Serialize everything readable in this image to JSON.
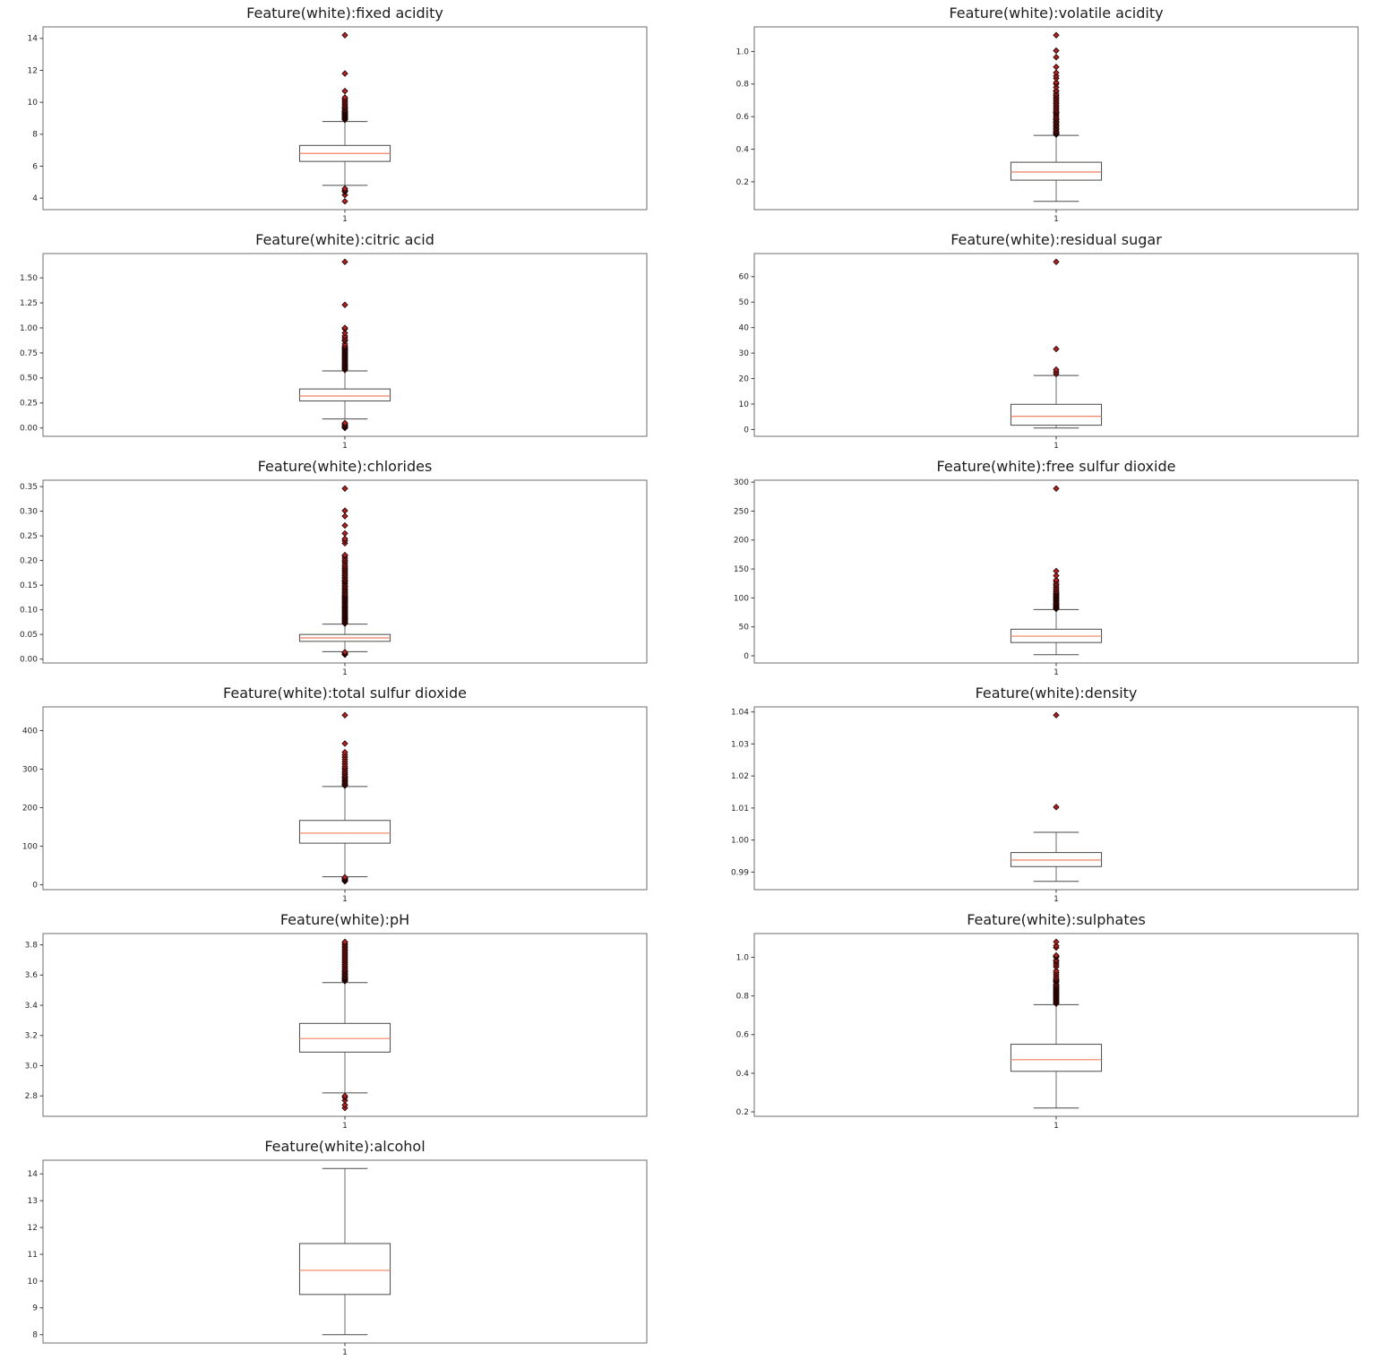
{
  "figure": {
    "background": "#ffffff",
    "layout": "2-column grid of 11 boxplots, last row single plot"
  },
  "style": {
    "frame_color": "#6e6e6e",
    "tick_color": "#3c3c3c",
    "tick_label_color": "#262626",
    "box_color": "#4a4a4a",
    "cap_color": "#4a4a4a",
    "whisker_color": "#6e6e6e",
    "median_color": "#f08262",
    "flier_fill": "#b22222",
    "flier_edge": "#1a0000",
    "title_color": "#1c1c1c"
  },
  "chart_data": [
    {
      "type": "boxplot",
      "title": "Feature(white):fixed acidity",
      "xtick_label": "1",
      "ylim": [
        3.28,
        14.72
      ],
      "yticks": [
        4,
        6,
        8,
        10,
        12,
        14
      ],
      "ytick_labels": [
        "4",
        "6",
        "8",
        "10",
        "12",
        "14"
      ],
      "stats": {
        "whislo": 4.8,
        "q1": 6.3,
        "med": 6.8,
        "q3": 7.3,
        "whishi": 8.8
      },
      "fliers": [
        3.8,
        4.2,
        4.4,
        4.45,
        4.5,
        4.6,
        8.9,
        8.95,
        9.0,
        9.05,
        9.1,
        9.15,
        9.2,
        9.25,
        9.3,
        9.35,
        9.4,
        9.45,
        9.5,
        9.6,
        9.65,
        9.7,
        9.8,
        9.9,
        10.0,
        10.1,
        10.2,
        10.3,
        10.7,
        11.8,
        14.2
      ]
    },
    {
      "type": "boxplot",
      "title": "Feature(white):volatile acidity",
      "xtick_label": "1",
      "ylim": [
        0.029,
        1.151
      ],
      "yticks": [
        0.2,
        0.4,
        0.6,
        0.8,
        1.0
      ],
      "ytick_labels": [
        "0.2",
        "0.4",
        "0.6",
        "0.8",
        "1.0"
      ],
      "stats": {
        "whislo": 0.08,
        "q1": 0.21,
        "med": 0.26,
        "q3": 0.32,
        "whishi": 0.485
      },
      "fliers": [
        0.49,
        0.495,
        0.5,
        0.505,
        0.51,
        0.52,
        0.525,
        0.53,
        0.54,
        0.545,
        0.55,
        0.56,
        0.565,
        0.57,
        0.58,
        0.585,
        0.59,
        0.6,
        0.61,
        0.62,
        0.625,
        0.63,
        0.64,
        0.65,
        0.66,
        0.67,
        0.68,
        0.69,
        0.7,
        0.71,
        0.72,
        0.73,
        0.74,
        0.755,
        0.76,
        0.78,
        0.8,
        0.81,
        0.835,
        0.85,
        0.87,
        0.905,
        0.965,
        1.005,
        1.1
      ]
    },
    {
      "type": "boxplot",
      "title": "Feature(white):citric acid",
      "xtick_label": "1",
      "ylim": [
        -0.083,
        1.743
      ],
      "yticks": [
        0.0,
        0.25,
        0.5,
        0.75,
        1.0,
        1.25,
        1.5
      ],
      "ytick_labels": [
        "0.00",
        "0.25",
        "0.50",
        "0.75",
        "1.00",
        "1.25",
        "1.50"
      ],
      "stats": {
        "whislo": 0.09,
        "q1": 0.27,
        "med": 0.32,
        "q3": 0.39,
        "whishi": 0.57
      },
      "fliers": [
        0.0,
        0.005,
        0.01,
        0.02,
        0.03,
        0.04,
        0.05,
        0.58,
        0.59,
        0.6,
        0.61,
        0.62,
        0.63,
        0.64,
        0.65,
        0.66,
        0.67,
        0.68,
        0.69,
        0.7,
        0.71,
        0.72,
        0.73,
        0.74,
        0.75,
        0.76,
        0.77,
        0.78,
        0.79,
        0.8,
        0.81,
        0.82,
        0.84,
        0.87,
        0.88,
        0.9,
        0.92,
        0.95,
        0.99,
        1.0,
        1.23,
        1.66
      ]
    },
    {
      "type": "boxplot",
      "title": "Feature(white):residual sugar",
      "xtick_label": "1",
      "ylim": [
        -2.66,
        69.06
      ],
      "yticks": [
        0,
        10,
        20,
        30,
        40,
        50,
        60
      ],
      "ytick_labels": [
        "0",
        "10",
        "20",
        "30",
        "40",
        "50",
        "60"
      ],
      "stats": {
        "whislo": 0.6,
        "q1": 1.7,
        "med": 5.2,
        "q3": 9.9,
        "whishi": 21.2
      },
      "fliers": [
        21.8,
        22.6,
        23.5,
        31.6,
        65.8
      ]
    },
    {
      "type": "boxplot",
      "title": "Feature(white):chlorides",
      "xtick_label": "1",
      "ylim": [
        -0.0079,
        0.3629
      ],
      "yticks": [
        0.0,
        0.05,
        0.1,
        0.15,
        0.2,
        0.25,
        0.3,
        0.35
      ],
      "ytick_labels": [
        "0.00",
        "0.05",
        "0.10",
        "0.15",
        "0.20",
        "0.25",
        "0.30",
        "0.35"
      ],
      "stats": {
        "whislo": 0.015,
        "q1": 0.036,
        "med": 0.043,
        "q3": 0.05,
        "whishi": 0.071
      },
      "fliers": [
        0.009,
        0.01,
        0.012,
        0.013,
        0.014,
        0.072,
        0.074,
        0.076,
        0.078,
        0.08,
        0.082,
        0.084,
        0.086,
        0.088,
        0.09,
        0.092,
        0.094,
        0.096,
        0.098,
        0.1,
        0.102,
        0.104,
        0.106,
        0.108,
        0.11,
        0.112,
        0.114,
        0.116,
        0.118,
        0.12,
        0.122,
        0.124,
        0.126,
        0.128,
        0.13,
        0.132,
        0.135,
        0.137,
        0.14,
        0.142,
        0.145,
        0.147,
        0.15,
        0.153,
        0.156,
        0.158,
        0.16,
        0.163,
        0.166,
        0.169,
        0.172,
        0.175,
        0.178,
        0.181,
        0.184,
        0.187,
        0.19,
        0.194,
        0.198,
        0.201,
        0.205,
        0.209,
        0.211,
        0.235,
        0.24,
        0.244,
        0.255,
        0.271,
        0.29,
        0.301,
        0.346
      ]
    },
    {
      "type": "boxplot",
      "title": "Feature(white):free sulfur dioxide",
      "xtick_label": "1",
      "ylim": [
        -12.35,
        303.35
      ],
      "yticks": [
        0,
        50,
        100,
        150,
        200,
        250,
        300
      ],
      "ytick_labels": [
        "0",
        "50",
        "100",
        "150",
        "200",
        "250",
        "300"
      ],
      "stats": {
        "whislo": 2,
        "q1": 23,
        "med": 34,
        "q3": 46,
        "whishi": 80
      },
      "fliers": [
        81,
        82,
        83.5,
        85,
        86.5,
        87,
        88.5,
        90,
        91,
        93,
        95,
        96.5,
        98,
        100,
        101,
        103,
        105,
        106,
        108,
        110,
        112,
        115,
        118,
        118.5,
        122,
        124,
        128,
        131,
        138.5,
        146.5,
        289
      ]
    },
    {
      "type": "boxplot",
      "title": "Feature(white):total sulfur dioxide",
      "xtick_label": "1",
      "ylim": [
        -12.55,
        461.55
      ],
      "yticks": [
        0,
        100,
        200,
        300,
        400
      ],
      "ytick_labels": [
        "0",
        "100",
        "200",
        "300",
        "400"
      ],
      "stats": {
        "whislo": 21,
        "q1": 108,
        "med": 134,
        "q3": 167,
        "whishi": 255
      },
      "fliers": [
        9,
        10,
        12,
        14,
        16,
        18,
        19.5,
        257,
        259,
        261,
        264,
        267,
        270,
        273,
        276,
        279,
        282,
        286,
        290,
        294,
        299,
        303,
        307,
        313,
        319,
        325,
        331,
        337,
        344,
        366.5,
        440
      ]
    },
    {
      "type": "boxplot",
      "title": "Feature(white):density",
      "xtick_label": "1",
      "ylim": [
        0.98452,
        1.04157
      ],
      "yticks": [
        0.99,
        1.0,
        1.01,
        1.02,
        1.03,
        1.04
      ],
      "ytick_labels": [
        "0.99",
        "1.00",
        "1.01",
        "1.02",
        "1.03",
        "1.04"
      ],
      "stats": {
        "whislo": 0.98711,
        "q1": 0.99172,
        "med": 0.99374,
        "q3": 0.9961,
        "whishi": 1.00241
      },
      "fliers": [
        1.0103,
        1.039
      ]
    },
    {
      "type": "boxplot",
      "title": "Feature(white):pH",
      "xtick_label": "1",
      "ylim": [
        2.665,
        3.875
      ],
      "yticks": [
        2.8,
        3.0,
        3.2,
        3.4,
        3.6,
        3.8
      ],
      "ytick_labels": [
        "2.8",
        "3.0",
        "3.2",
        "3.4",
        "3.6",
        "3.8"
      ],
      "stats": {
        "whislo": 2.82,
        "q1": 3.09,
        "med": 3.18,
        "q3": 3.28,
        "whishi": 3.55
      },
      "fliers": [
        2.72,
        2.74,
        2.77,
        2.79,
        2.8,
        3.56,
        3.565,
        3.57,
        3.575,
        3.58,
        3.585,
        3.59,
        3.6,
        3.605,
        3.61,
        3.62,
        3.625,
        3.63,
        3.64,
        3.65,
        3.66,
        3.67,
        3.68,
        3.69,
        3.7,
        3.71,
        3.72,
        3.73,
        3.74,
        3.75,
        3.76,
        3.77,
        3.78,
        3.79,
        3.8,
        3.81,
        3.82
      ]
    },
    {
      "type": "boxplot",
      "title": "Feature(white):sulphates",
      "xtick_label": "1",
      "ylim": [
        0.177,
        1.123
      ],
      "yticks": [
        0.2,
        0.4,
        0.6,
        0.8,
        1.0
      ],
      "ytick_labels": [
        "0.2",
        "0.4",
        "0.6",
        "0.8",
        "1.0"
      ],
      "stats": {
        "whislo": 0.22,
        "q1": 0.41,
        "med": 0.47,
        "q3": 0.55,
        "whishi": 0.755
      },
      "fliers": [
        0.76,
        0.765,
        0.77,
        0.775,
        0.78,
        0.785,
        0.79,
        0.795,
        0.8,
        0.805,
        0.81,
        0.815,
        0.82,
        0.825,
        0.83,
        0.835,
        0.84,
        0.845,
        0.85,
        0.855,
        0.86,
        0.87,
        0.875,
        0.88,
        0.885,
        0.89,
        0.9,
        0.91,
        0.92,
        0.93,
        0.95,
        0.96,
        0.97,
        0.98,
        0.985,
        1.0,
        1.005,
        1.01,
        1.05,
        1.06,
        1.08
      ]
    },
    {
      "type": "boxplot",
      "title": "Feature(white):alcohol",
      "xtick_label": "1",
      "ylim": [
        7.69,
        14.51
      ],
      "yticks": [
        8,
        9,
        10,
        11,
        12,
        13,
        14
      ],
      "ytick_labels": [
        "8",
        "9",
        "10",
        "11",
        "12",
        "13",
        "14"
      ],
      "stats": {
        "whislo": 8.0,
        "q1": 9.5,
        "med": 10.4,
        "q3": 11.4,
        "whishi": 14.2
      },
      "fliers": []
    }
  ]
}
